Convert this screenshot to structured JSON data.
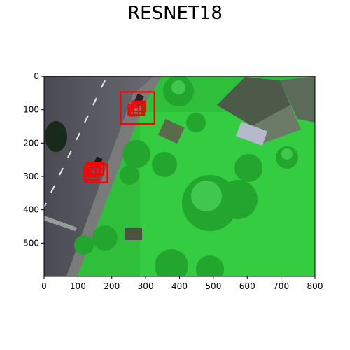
{
  "figure": {
    "title": "RESNET18"
  },
  "chart_data": {
    "type": "image",
    "title": "RESNET18",
    "xlabel": "",
    "ylabel": "",
    "xlim": [
      0,
      800
    ],
    "ylim": [
      600,
      0
    ],
    "x_ticks": [
      0,
      100,
      200,
      300,
      400,
      500,
      600,
      700,
      800
    ],
    "y_ticks": [
      0,
      100,
      200,
      300,
      400,
      500
    ],
    "x_tick_labels": [
      "0",
      "100",
      "200",
      "300",
      "400",
      "500",
      "600",
      "700",
      "800"
    ],
    "y_tick_labels": [
      "0",
      "100",
      "200",
      "300",
      "400",
      "500"
    ],
    "grid": false,
    "detections": [
      {
        "x0": 226,
        "y0": 47,
        "x1": 326,
        "y1": 143
      },
      {
        "x0": 249,
        "y0": 85,
        "x1": 289,
        "y1": 115
      },
      {
        "x0": 259,
        "y0": 75,
        "x1": 299,
        "y1": 105
      },
      {
        "x0": 264,
        "y0": 80,
        "x1": 296,
        "y1": 116
      },
      {
        "x0": 254,
        "y0": 93,
        "x1": 279,
        "y1": 118
      },
      {
        "x0": 127,
        "y0": 260,
        "x1": 175,
        "y1": 295
      },
      {
        "x0": 117,
        "y0": 273,
        "x1": 162,
        "y1": 310
      },
      {
        "x0": 122,
        "y0": 264,
        "x1": 187,
        "y1": 318
      },
      {
        "x0": 137,
        "y0": 268,
        "x1": 167,
        "y1": 292
      },
      {
        "x0": 131,
        "y0": 279,
        "x1": 153,
        "y1": 301
      }
    ],
    "box_color": "#ff0000",
    "frame_color": "#000000"
  }
}
